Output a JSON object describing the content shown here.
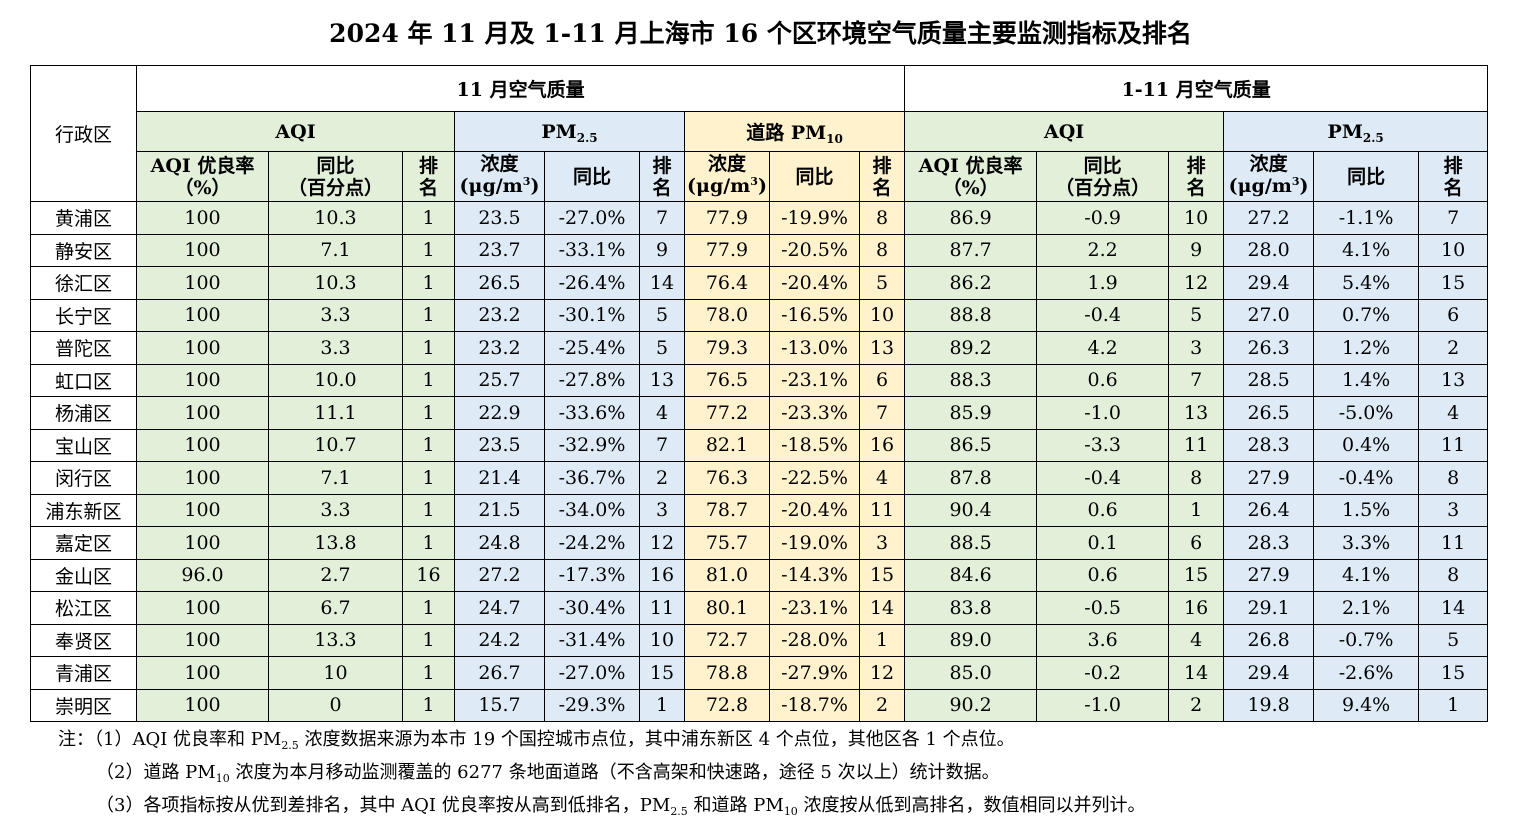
{
  "title": "2024 年 11 月及 1-11 月上海市 16 个区环境空气质量主要监测指标及排名",
  "header": {
    "region_col": "行政区",
    "period_nov": "11 月空气质量",
    "period_ytd": "1-11 月空气质量",
    "aqi": "AQI",
    "pm_main": "PM",
    "pm_sub": "2.5",
    "road_pm_main": "道路 PM",
    "road_pm_sub": "10",
    "aqi_rate_line1": "AQI 优良率",
    "aqi_rate_line2": "（%）",
    "yoy_line1": "同比",
    "yoy_line2": "（百分点）",
    "rank_line1": "排",
    "rank_line2": "名",
    "conc_line1": "浓度",
    "conc_unit_prefix": "(μg/m",
    "conc_unit_sup": "3",
    "conc_unit_suffix": ")",
    "yoy": "同比"
  },
  "rows": [
    {
      "region": "黄浦区",
      "c": [
        "100",
        "10.3",
        "1",
        "23.5",
        "-27.0%",
        "7",
        "77.9",
        "-19.9%",
        "8",
        "86.9",
        "-0.9",
        "10",
        "27.2",
        "-1.1%",
        "7"
      ]
    },
    {
      "region": "静安区",
      "c": [
        "100",
        "7.1",
        "1",
        "23.7",
        "-33.1%",
        "9",
        "77.9",
        "-20.5%",
        "8",
        "87.7",
        "2.2",
        "9",
        "28.0",
        "4.1%",
        "10"
      ]
    },
    {
      "region": "徐汇区",
      "c": [
        "100",
        "10.3",
        "1",
        "26.5",
        "-26.4%",
        "14",
        "76.4",
        "-20.4%",
        "5",
        "86.2",
        "1.9",
        "12",
        "29.4",
        "5.4%",
        "15"
      ]
    },
    {
      "region": "长宁区",
      "c": [
        "100",
        "3.3",
        "1",
        "23.2",
        "-30.1%",
        "5",
        "78.0",
        "-16.5%",
        "10",
        "88.8",
        "-0.4",
        "5",
        "27.0",
        "0.7%",
        "6"
      ]
    },
    {
      "region": "普陀区",
      "c": [
        "100",
        "3.3",
        "1",
        "23.2",
        "-25.4%",
        "5",
        "79.3",
        "-13.0%",
        "13",
        "89.2",
        "4.2",
        "3",
        "26.3",
        "1.2%",
        "2"
      ]
    },
    {
      "region": "虹口区",
      "c": [
        "100",
        "10.0",
        "1",
        "25.7",
        "-27.8%",
        "13",
        "76.5",
        "-23.1%",
        "6",
        "88.3",
        "0.6",
        "7",
        "28.5",
        "1.4%",
        "13"
      ]
    },
    {
      "region": "杨浦区",
      "c": [
        "100",
        "11.1",
        "1",
        "22.9",
        "-33.6%",
        "4",
        "77.2",
        "-23.3%",
        "7",
        "85.9",
        "-1.0",
        "13",
        "26.5",
        "-5.0%",
        "4"
      ]
    },
    {
      "region": "宝山区",
      "c": [
        "100",
        "10.7",
        "1",
        "23.5",
        "-32.9%",
        "7",
        "82.1",
        "-18.5%",
        "16",
        "86.5",
        "-3.3",
        "11",
        "28.3",
        "0.4%",
        "11"
      ]
    },
    {
      "region": "闵行区",
      "c": [
        "100",
        "7.1",
        "1",
        "21.4",
        "-36.7%",
        "2",
        "76.3",
        "-22.5%",
        "4",
        "87.8",
        "-0.4",
        "8",
        "27.9",
        "-0.4%",
        "8"
      ]
    },
    {
      "region": "浦东新区",
      "c": [
        "100",
        "3.3",
        "1",
        "21.5",
        "-34.0%",
        "3",
        "78.7",
        "-20.4%",
        "11",
        "90.4",
        "0.6",
        "1",
        "26.4",
        "1.5%",
        "3"
      ]
    },
    {
      "region": "嘉定区",
      "c": [
        "100",
        "13.8",
        "1",
        "24.8",
        "-24.2%",
        "12",
        "75.7",
        "-19.0%",
        "3",
        "88.5",
        "0.1",
        "6",
        "28.3",
        "3.3%",
        "11"
      ]
    },
    {
      "region": "金山区",
      "c": [
        "96.0",
        "2.7",
        "16",
        "27.2",
        "-17.3%",
        "16",
        "81.0",
        "-14.3%",
        "15",
        "84.6",
        "0.6",
        "15",
        "27.9",
        "4.1%",
        "8"
      ]
    },
    {
      "region": "松江区",
      "c": [
        "100",
        "6.7",
        "1",
        "24.7",
        "-30.4%",
        "11",
        "80.1",
        "-23.1%",
        "14",
        "83.8",
        "-0.5",
        "16",
        "29.1",
        "2.1%",
        "14"
      ]
    },
    {
      "region": "奉贤区",
      "c": [
        "100",
        "13.3",
        "1",
        "24.2",
        "-31.4%",
        "10",
        "72.7",
        "-28.0%",
        "1",
        "89.0",
        "3.6",
        "4",
        "26.8",
        "-0.7%",
        "5"
      ]
    },
    {
      "region": "青浦区",
      "c": [
        "100",
        "10",
        "1",
        "26.7",
        "-27.0%",
        "15",
        "78.8",
        "-27.9%",
        "12",
        "85.0",
        "-0.2",
        "14",
        "29.4",
        "-2.6%",
        "15"
      ]
    },
    {
      "region": "崇明区",
      "c": [
        "100",
        "0",
        "1",
        "15.7",
        "-29.3%",
        "1",
        "72.8",
        "-18.7%",
        "2",
        "90.2",
        "-1.0",
        "2",
        "19.8",
        "9.4%",
        "1"
      ]
    }
  ],
  "notes": {
    "label": "注：",
    "n1_a": "（1）AQI 优良率和 PM",
    "n1_sub": "2.5",
    "n1_b": " 浓度数据来源为本市 19 个国控城市点位，其中浦东新区 4 个点位，其他区各 1 个点位。",
    "n2_a": "（2）道路 PM",
    "n2_sub": "10",
    "n2_b": " 浓度为本月移动监测覆盖的 6277 条地面道路（不含高架和快速路，途径 5 次以上）统计数据。",
    "n3_a": "（3）各项指标按从优到差排名，其中 AQI 优良率按从高到低排名，PM",
    "n3_sub": "2.5",
    "n3_b": " 和道路 PM",
    "n3_sub2": "10",
    "n3_c": " 浓度按从低到高排名，数值相同以并列计。"
  }
}
